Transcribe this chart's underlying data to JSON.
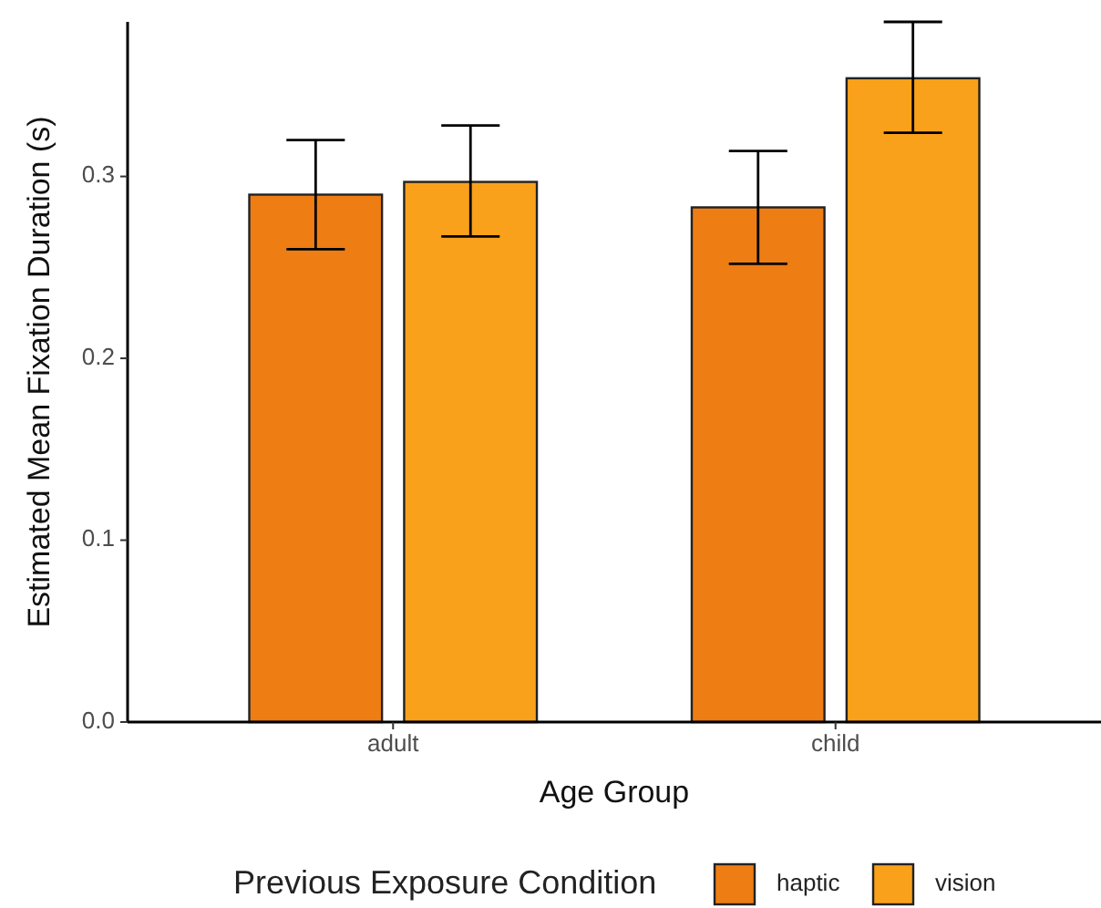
{
  "chart_data": {
    "type": "bar",
    "xlabel": "Age Group",
    "ylabel": "Estimated Mean Fixation Duration (s)",
    "legend_title": "Previous Exposure Condition",
    "categories": [
      "adult",
      "child"
    ],
    "series": [
      {
        "name": "haptic",
        "color": "#ee7d14",
        "values": [
          0.29,
          0.283
        ],
        "errors": [
          [
            0.26,
            0.32
          ],
          [
            0.252,
            0.314
          ]
        ]
      },
      {
        "name": "vision",
        "color": "#f9a11a",
        "values": [
          0.297,
          0.354
        ],
        "errors": [
          [
            0.267,
            0.328
          ],
          [
            0.324,
            0.385
          ]
        ]
      }
    ],
    "ylim": [
      0,
      0.385
    ],
    "yticks": [
      {
        "value": 0,
        "label": "0.0"
      },
      {
        "value": 0.1,
        "label": "0.1"
      },
      {
        "value": 0.2,
        "label": "0.2"
      },
      {
        "value": 0.3,
        "label": "0.3"
      }
    ],
    "grid": false,
    "legend": "bottom"
  }
}
